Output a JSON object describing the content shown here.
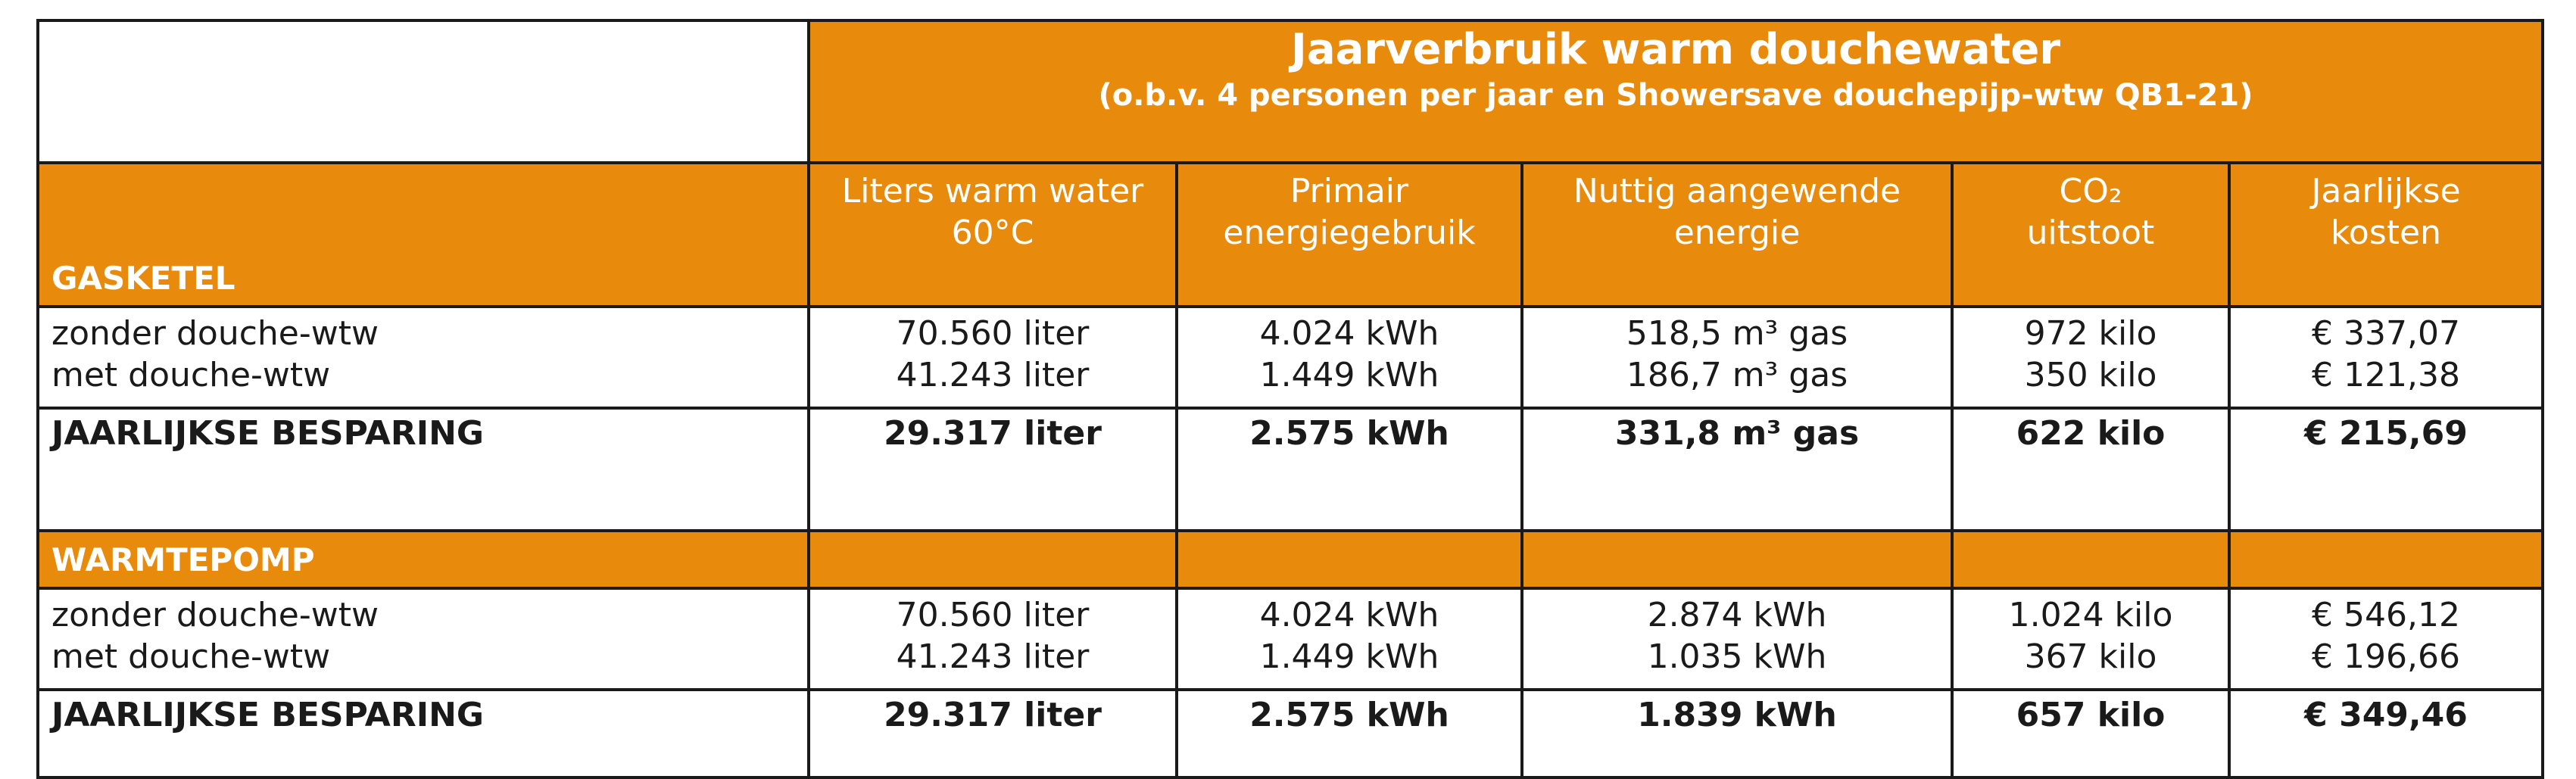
{
  "title": {
    "main": "Jaarverbruik warm douchewater",
    "sub": "(o.b.v. 4 personen per jaar en Showersave douchepijp-wtw QB1-21)"
  },
  "columns": [
    {
      "line1": "Liters warm water",
      "line2": "60°C"
    },
    {
      "line1": "Primair",
      "line2": "energiegebruik"
    },
    {
      "line1": "Nuttig aangewende",
      "line2": "energie"
    },
    {
      "line1": "CO₂",
      "line2": "uitstoot"
    },
    {
      "line1": "Jaarlijkse",
      "line2": "kosten"
    }
  ],
  "sections": [
    {
      "label": "GASKETEL",
      "rows": [
        {
          "label": "zonder douche-wtw",
          "values": [
            "70.560 liter",
            "4.024 kWh",
            "518,5 m³ gas",
            "972 kilo",
            "€ 337,07"
          ]
        },
        {
          "label": "met douche-wtw",
          "values": [
            "41.243 liter",
            "1.449 kWh",
            "186,7 m³ gas",
            "350 kilo",
            "€ 121,38"
          ]
        }
      ],
      "savings": {
        "label": "JAARLIJKSE BESPARING",
        "values": [
          "29.317 liter",
          "2.575 kWh",
          "331,8 m³ gas",
          "622 kilo",
          "€ 215,69"
        ]
      }
    },
    {
      "label": "WARMTEPOMP",
      "rows": [
        {
          "label": "zonder douche-wtw",
          "values": [
            "70.560 liter",
            "4.024 kWh",
            "2.874 kWh",
            "1.024 kilo",
            "€ 546,12"
          ]
        },
        {
          "label": "met douche-wtw",
          "values": [
            "41.243 liter",
            "1.449 kWh",
            "1.035 kWh",
            "367 kilo",
            "€ 196,66"
          ]
        }
      ],
      "savings": {
        "label": "JAARLIJKSE BESPARING",
        "values": [
          "29.317 liter",
          "2.575 kWh",
          "1.839 kWh",
          "657 kilo",
          "€ 349,46"
        ]
      }
    }
  ],
  "colors": {
    "accent": "#e88a0c",
    "header_text": "#ffffff",
    "body_text": "#1a1a1a",
    "border": "#1a1a1a"
  }
}
